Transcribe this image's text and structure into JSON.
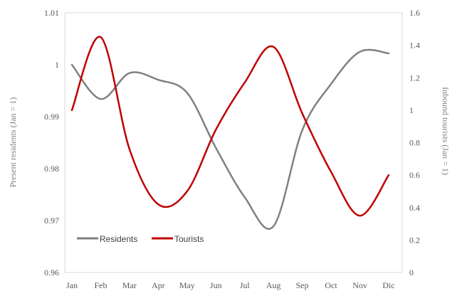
{
  "chart_data": {
    "type": "line",
    "categories": [
      "Jan",
      "Feb",
      "Mar",
      "Apr",
      "May",
      "Jun",
      "Jul",
      "Aug",
      "Sep",
      "Oct",
      "Nov",
      "Dic"
    ],
    "series": [
      {
        "name": "Residents",
        "axis": "left",
        "color": "#808080",
        "values": [
          1.0,
          0.9934,
          0.9984,
          0.9971,
          0.9946,
          0.984,
          0.9745,
          0.9689,
          0.9874,
          0.9963,
          1.0025,
          1.0022
        ]
      },
      {
        "name": "Tourists",
        "axis": "right",
        "color": "#c00000",
        "values": [
          1.0,
          1.45,
          0.76,
          0.42,
          0.5,
          0.88,
          1.17,
          1.39,
          0.98,
          0.62,
          0.35,
          0.6
        ]
      }
    ],
    "y_left": {
      "label": "Present residents (Jan = 1)",
      "range": [
        0.96,
        1.01
      ],
      "ticks": [
        "0.96",
        "0.97",
        "0.98",
        "0.99",
        "1",
        "1.01"
      ]
    },
    "y_right": {
      "label": "Inbound tourists (Jan = 1)",
      "range": [
        0,
        1.6
      ],
      "ticks": [
        "0",
        "0.2",
        "0.4",
        "0.6",
        "0.8",
        "1",
        "1.2",
        "1.4",
        "1.6"
      ]
    },
    "grid": false,
    "legend": "bottom-left, inside plot"
  }
}
